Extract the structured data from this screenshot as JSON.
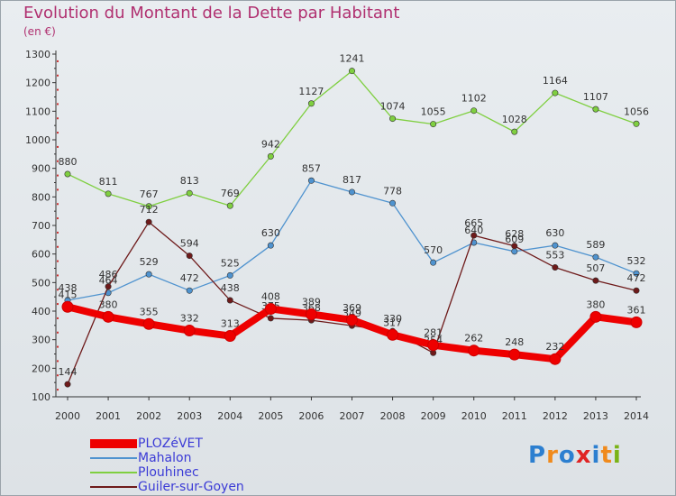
{
  "header": {
    "title": "Evolution du Montant de la Dette par Habitant",
    "unit": "(en €)"
  },
  "logo": {
    "text": "Proxiti",
    "colors": [
      "#2c7fd0",
      "#f08a1c",
      "#2c7fd0",
      "#e02424",
      "#2c7fd0",
      "#f08a1c",
      "#7ab317"
    ]
  },
  "chart_data": {
    "type": "line",
    "title": "Evolution du Montant de la Dette par Habitant",
    "ylabel": "(en €)",
    "xlabel": "",
    "ylim": [
      100,
      1300
    ],
    "yticks": [
      100,
      200,
      300,
      400,
      500,
      600,
      700,
      800,
      900,
      1000,
      1100,
      1200,
      1300
    ],
    "categories": [
      "2000",
      "2001",
      "2002",
      "2003",
      "2004",
      "2005",
      "2006",
      "2007",
      "2008",
      "2009",
      "2010",
      "2011",
      "2012",
      "2013",
      "2014"
    ],
    "grid": false,
    "legend_position": "bottom-left",
    "series": [
      {
        "name": "Plouhinec",
        "color": "#7fcf40",
        "values": [
          880,
          811,
          767,
          813,
          769,
          942,
          1127,
          1241,
          1074,
          1055,
          1102,
          1028,
          1164,
          1107,
          1056
        ]
      },
      {
        "name": "Mahalon",
        "color": "#4f93cf",
        "values": [
          438,
          464,
          529,
          472,
          525,
          630,
          857,
          817,
          778,
          570,
          640,
          609,
          630,
          589,
          532
        ]
      },
      {
        "name": "Guiler-sur-Goyen",
        "color": "#6e1a1a",
        "values": [
          144,
          486,
          712,
          594,
          438,
          375,
          368,
          349,
          330,
          254,
          665,
          628,
          553,
          507,
          472
        ]
      },
      {
        "name": "PLOZéVET",
        "color": "#ee0000",
        "values": [
          415,
          380,
          355,
          332,
          313,
          408,
          389,
          369,
          317,
          281,
          262,
          248,
          232,
          380,
          361
        ]
      }
    ],
    "legend": [
      "PLOZéVET",
      "Mahalon",
      "Plouhinec",
      "Guiler-sur-Goyen"
    ]
  }
}
